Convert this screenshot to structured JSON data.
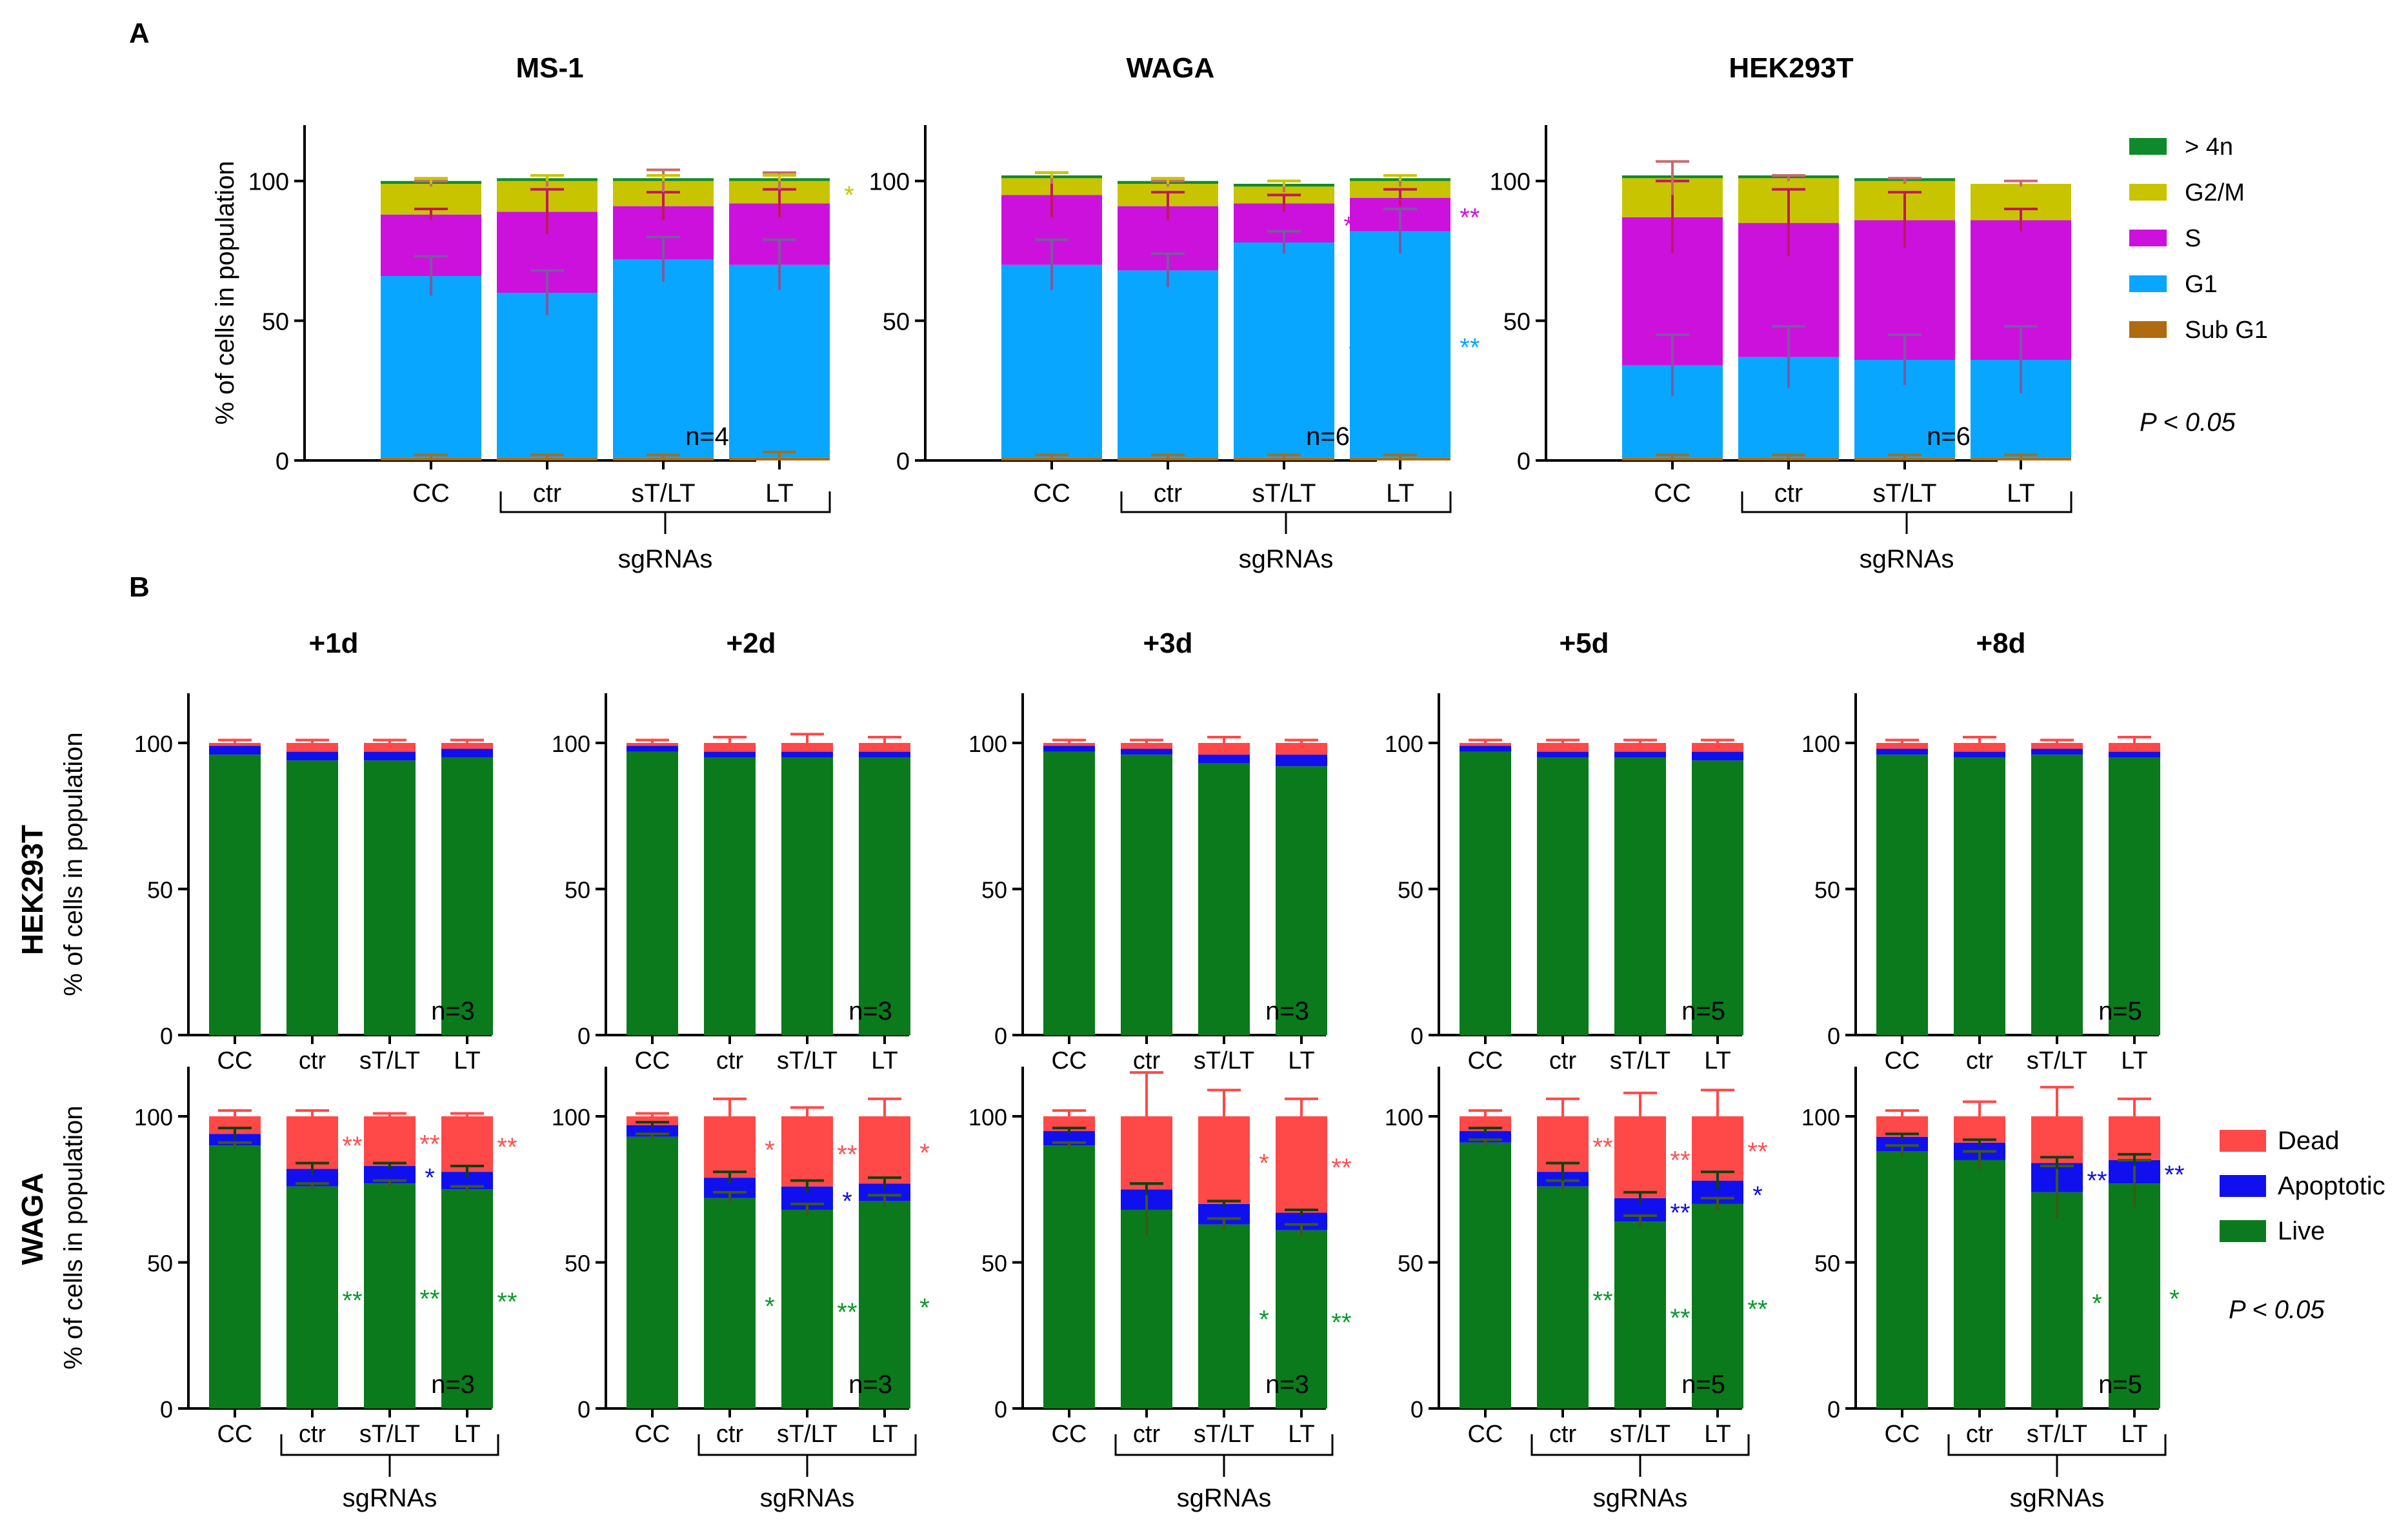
{
  "figure": {
    "panel_a_label": "A",
    "panel_b_label": "B",
    "row_b_labels": [
      "HEK293T",
      "WAGA"
    ],
    "x_categories": [
      "CC",
      "ctr",
      "sT/LT",
      "LT"
    ],
    "group_label": "sgRNAs",
    "y_label": "% of cells in population",
    "y_ticks": [
      "0",
      "50",
      "100"
    ],
    "significance_note": "P < 0.05"
  },
  "legend_a": [
    {
      "label": "> 4n",
      "color": "#0f8a2a"
    },
    {
      "label": "G2/M",
      "color": "#c8c400"
    },
    {
      "label": "S",
      "color": "#cc11dd"
    },
    {
      "label": "G1",
      "color": "#08a6ff"
    },
    {
      "label": "Sub G1",
      "color": "#b06a10"
    }
  ],
  "legend_b": [
    {
      "label": "Dead",
      "color": "#ff4848"
    },
    {
      "label": "Apoptotic",
      "color": "#1010ee"
    },
    {
      "label": "Live",
      "color": "#0a7a1c"
    }
  ],
  "chart_data": [
    {
      "type": "bar",
      "stacked": true,
      "panel": "A",
      "title": "MS-1",
      "categories": [
        "CC",
        "ctr",
        "sT/LT",
        "LT"
      ],
      "ylim": [
        0,
        120
      ],
      "ylabel": "% of cells in population",
      "n_label": "n=4",
      "series": [
        {
          "name": "Sub G1",
          "values": [
            1,
            1,
            1,
            1
          ]
        },
        {
          "name": "G1",
          "values": [
            65,
            59,
            71,
            69
          ]
        },
        {
          "name": "S",
          "values": [
            22,
            29,
            19,
            22
          ]
        },
        {
          "name": "G2/M",
          "values": [
            11,
            11,
            9,
            8
          ]
        },
        {
          "name": "> 4n",
          "values": [
            1,
            1,
            1,
            1
          ]
        }
      ],
      "error_tops": [
        [
          1,
          7,
          2,
          1,
          1
        ],
        [
          1,
          8,
          8,
          2,
          1
        ],
        [
          1,
          8,
          5,
          4,
          1
        ],
        [
          2,
          9,
          5,
          3,
          1
        ]
      ],
      "annotations": [
        {
          "category": "LT",
          "text": "*",
          "series": "G2/M"
        }
      ]
    },
    {
      "type": "bar",
      "stacked": true,
      "panel": "A",
      "title": "WAGA",
      "categories": [
        "CC",
        "ctr",
        "sT/LT",
        "LT"
      ],
      "ylim": [
        0,
        120
      ],
      "ylabel": "",
      "n_label": "n=6",
      "series": [
        {
          "name": "Sub G1",
          "values": [
            1,
            1,
            1,
            1
          ]
        },
        {
          "name": "G1",
          "values": [
            69,
            67,
            77,
            81
          ]
        },
        {
          "name": "S",
          "values": [
            25,
            23,
            14,
            12
          ]
        },
        {
          "name": "G2/M",
          "values": [
            6,
            8,
            6,
            6
          ]
        },
        {
          "name": "> 4n",
          "values": [
            1,
            1,
            1,
            1
          ]
        }
      ],
      "error_tops": [
        [
          1,
          9,
          8,
          2,
          1
        ],
        [
          1,
          6,
          5,
          1,
          1
        ],
        [
          1,
          4,
          3,
          2,
          1
        ],
        [
          1,
          8,
          3,
          2,
          1
        ]
      ],
      "annotations": [
        {
          "category": "sT/LT",
          "text": "**",
          "series": "S"
        },
        {
          "category": "sT/LT",
          "text": "*",
          "series": "G1"
        },
        {
          "category": "LT",
          "text": "**",
          "series": "S"
        },
        {
          "category": "LT",
          "text": "**",
          "series": "G1"
        }
      ]
    },
    {
      "type": "bar",
      "stacked": true,
      "panel": "A",
      "title": "HEK293T",
      "categories": [
        "CC",
        "ctr",
        "sT/LT",
        "LT"
      ],
      "ylim": [
        0,
        120
      ],
      "ylabel": "",
      "n_label": "n=6",
      "series": [
        {
          "name": "Sub G1",
          "values": [
            1,
            1,
            1,
            1
          ]
        },
        {
          "name": "G1",
          "values": [
            33,
            36,
            35,
            35
          ]
        },
        {
          "name": "S",
          "values": [
            53,
            48,
            50,
            50
          ]
        },
        {
          "name": "G2/M",
          "values": [
            14,
            16,
            14,
            13
          ]
        },
        {
          "name": "> 4n",
          "values": [
            1,
            1,
            1,
            0
          ]
        }
      ],
      "error_tops": [
        [
          1,
          11,
          13,
          6,
          0
        ],
        [
          1,
          11,
          12,
          1,
          0
        ],
        [
          1,
          9,
          10,
          1,
          0
        ],
        [
          1,
          12,
          4,
          1,
          0
        ]
      ],
      "annotations": []
    },
    {
      "type": "bar",
      "stacked": true,
      "panel": "B",
      "title": "+1d",
      "row": "HEK293T",
      "categories": [
        "CC",
        "ctr",
        "sT/LT",
        "LT"
      ],
      "ylim": [
        0,
        117
      ],
      "ylabel": "% of cells in population",
      "n_label": "n=3",
      "series": [
        {
          "name": "Live",
          "values": [
            96,
            94,
            94,
            95
          ]
        },
        {
          "name": "Apoptotic",
          "values": [
            3,
            3,
            3,
            3
          ]
        },
        {
          "name": "Dead",
          "values": [
            1,
            3,
            3,
            2
          ]
        }
      ],
      "error_tops": [
        [
          0,
          0,
          1
        ],
        [
          0,
          0,
          1
        ],
        [
          0,
          0,
          1
        ],
        [
          0,
          0,
          1
        ]
      ],
      "annotations": []
    },
    {
      "type": "bar",
      "stacked": true,
      "panel": "B",
      "title": "+2d",
      "row": "HEK293T",
      "categories": [
        "CC",
        "ctr",
        "sT/LT",
        "LT"
      ],
      "ylim": [
        0,
        117
      ],
      "ylabel": "",
      "n_label": "n=3",
      "series": [
        {
          "name": "Live",
          "values": [
            97,
            95,
            95,
            95
          ]
        },
        {
          "name": "Apoptotic",
          "values": [
            2,
            2,
            2,
            2
          ]
        },
        {
          "name": "Dead",
          "values": [
            1,
            3,
            3,
            3
          ]
        }
      ],
      "error_tops": [
        [
          0,
          0,
          1
        ],
        [
          0,
          0,
          2
        ],
        [
          0,
          0,
          3
        ],
        [
          0,
          0,
          2
        ]
      ],
      "annotations": []
    },
    {
      "type": "bar",
      "stacked": true,
      "panel": "B",
      "title": "+3d",
      "row": "HEK293T",
      "categories": [
        "CC",
        "ctr",
        "sT/LT",
        "LT"
      ],
      "ylim": [
        0,
        117
      ],
      "ylabel": "",
      "n_label": "n=3",
      "series": [
        {
          "name": "Live",
          "values": [
            97,
            96,
            93,
            92
          ]
        },
        {
          "name": "Apoptotic",
          "values": [
            2,
            2,
            3,
            4
          ]
        },
        {
          "name": "Dead",
          "values": [
            1,
            2,
            4,
            4
          ]
        }
      ],
      "error_tops": [
        [
          0,
          0,
          1
        ],
        [
          0,
          0,
          1
        ],
        [
          0,
          0,
          2
        ],
        [
          0,
          0,
          1
        ]
      ],
      "annotations": []
    },
    {
      "type": "bar",
      "stacked": true,
      "panel": "B",
      "title": "+5d",
      "row": "HEK293T",
      "categories": [
        "CC",
        "ctr",
        "sT/LT",
        "LT"
      ],
      "ylim": [
        0,
        117
      ],
      "ylabel": "",
      "n_label": "n=5",
      "series": [
        {
          "name": "Live",
          "values": [
            97,
            95,
            95,
            94
          ]
        },
        {
          "name": "Apoptotic",
          "values": [
            2,
            2,
            2,
            3
          ]
        },
        {
          "name": "Dead",
          "values": [
            1,
            3,
            3,
            3
          ]
        }
      ],
      "error_tops": [
        [
          0,
          0,
          1
        ],
        [
          0,
          0,
          1
        ],
        [
          0,
          0,
          1
        ],
        [
          0,
          0,
          1
        ]
      ],
      "annotations": []
    },
    {
      "type": "bar",
      "stacked": true,
      "panel": "B",
      "title": "+8d",
      "row": "HEK293T",
      "categories": [
        "CC",
        "ctr",
        "sT/LT",
        "LT"
      ],
      "ylim": [
        0,
        117
      ],
      "ylabel": "",
      "n_label": "n=5",
      "series": [
        {
          "name": "Live",
          "values": [
            96,
            95,
            96,
            95
          ]
        },
        {
          "name": "Apoptotic",
          "values": [
            2,
            2,
            2,
            2
          ]
        },
        {
          "name": "Dead",
          "values": [
            2,
            3,
            2,
            3
          ]
        }
      ],
      "error_tops": [
        [
          0,
          0,
          1
        ],
        [
          0,
          0,
          2
        ],
        [
          0,
          0,
          1
        ],
        [
          0,
          0,
          2
        ]
      ],
      "annotations": []
    },
    {
      "type": "bar",
      "stacked": true,
      "panel": "B",
      "title": "",
      "row": "WAGA",
      "categories": [
        "CC",
        "ctr",
        "sT/LT",
        "LT"
      ],
      "ylim": [
        0,
        117
      ],
      "ylabel": "% of cells in population",
      "n_label": "n=3",
      "series": [
        {
          "name": "Live",
          "values": [
            90,
            76,
            77,
            75
          ]
        },
        {
          "name": "Apoptotic",
          "values": [
            4,
            6,
            6,
            6
          ]
        },
        {
          "name": "Dead",
          "values": [
            6,
            18,
            17,
            19
          ]
        }
      ],
      "error_tops": [
        [
          1,
          2,
          2
        ],
        [
          1,
          2,
          2
        ],
        [
          1,
          1,
          1
        ],
        [
          1,
          2,
          1
        ]
      ],
      "annotations": [
        {
          "category": "ctr",
          "text": "**",
          "series": "Dead"
        },
        {
          "category": "ctr",
          "text": "**",
          "series": "Live"
        },
        {
          "category": "sT/LT",
          "text": "**",
          "series": "Dead"
        },
        {
          "category": "sT/LT",
          "text": "*",
          "series": "Apoptotic"
        },
        {
          "category": "sT/LT",
          "text": "**",
          "series": "Live"
        },
        {
          "category": "LT",
          "text": "**",
          "series": "Dead"
        },
        {
          "category": "LT",
          "text": "**",
          "series": "Live"
        }
      ]
    },
    {
      "type": "bar",
      "stacked": true,
      "panel": "B",
      "title": "",
      "row": "WAGA",
      "categories": [
        "CC",
        "ctr",
        "sT/LT",
        "LT"
      ],
      "ylim": [
        0,
        117
      ],
      "ylabel": "",
      "n_label": "n=3",
      "series": [
        {
          "name": "Live",
          "values": [
            93,
            72,
            68,
            71
          ]
        },
        {
          "name": "Apoptotic",
          "values": [
            4,
            7,
            8,
            6
          ]
        },
        {
          "name": "Dead",
          "values": [
            3,
            21,
            24,
            23
          ]
        }
      ],
      "error_tops": [
        [
          1,
          1,
          1
        ],
        [
          2,
          2,
          6
        ],
        [
          2,
          2,
          3
        ],
        [
          2,
          2,
          6
        ]
      ],
      "annotations": [
        {
          "category": "ctr",
          "text": "*",
          "series": "Dead"
        },
        {
          "category": "ctr",
          "text": "*",
          "series": "Live"
        },
        {
          "category": "sT/LT",
          "text": "**",
          "series": "Dead"
        },
        {
          "category": "sT/LT",
          "text": "*",
          "series": "Apoptotic"
        },
        {
          "category": "sT/LT",
          "text": "**",
          "series": "Live"
        },
        {
          "category": "LT",
          "text": "*",
          "series": "Dead"
        },
        {
          "category": "LT",
          "text": "*",
          "series": "Live"
        }
      ]
    },
    {
      "type": "bar",
      "stacked": true,
      "panel": "B",
      "title": "",
      "row": "WAGA",
      "categories": [
        "CC",
        "ctr",
        "sT/LT",
        "LT"
      ],
      "ylim": [
        0,
        117
      ],
      "ylabel": "",
      "n_label": "n=3",
      "series": [
        {
          "name": "Live",
          "values": [
            90,
            68,
            63,
            61
          ]
        },
        {
          "name": "Apoptotic",
          "values": [
            5,
            7,
            7,
            6
          ]
        },
        {
          "name": "Dead",
          "values": [
            5,
            25,
            30,
            33
          ]
        }
      ],
      "error_tops": [
        [
          1,
          1,
          2
        ],
        [
          9,
          2,
          15
        ],
        [
          2,
          1,
          9
        ],
        [
          2,
          1,
          6
        ]
      ],
      "annotations": [
        {
          "category": "sT/LT",
          "text": "*",
          "series": "Dead"
        },
        {
          "category": "sT/LT",
          "text": "*",
          "series": "Live"
        },
        {
          "category": "LT",
          "text": "**",
          "series": "Dead"
        },
        {
          "category": "LT",
          "text": "**",
          "series": "Live"
        }
      ]
    },
    {
      "type": "bar",
      "stacked": true,
      "panel": "B",
      "title": "",
      "row": "WAGA",
      "categories": [
        "CC",
        "ctr",
        "sT/LT",
        "LT"
      ],
      "ylim": [
        0,
        117
      ],
      "ylabel": "",
      "n_label": "n=5",
      "series": [
        {
          "name": "Live",
          "values": [
            91,
            76,
            64,
            70
          ]
        },
        {
          "name": "Apoptotic",
          "values": [
            4,
            5,
            8,
            8
          ]
        },
        {
          "name": "Dead",
          "values": [
            5,
            19,
            28,
            22
          ]
        }
      ],
      "error_tops": [
        [
          1,
          1,
          2
        ],
        [
          2,
          3,
          6
        ],
        [
          2,
          2,
          8
        ],
        [
          2,
          3,
          9
        ]
      ],
      "annotations": [
        {
          "category": "ctr",
          "text": "**",
          "series": "Dead"
        },
        {
          "category": "ctr",
          "text": "**",
          "series": "Live"
        },
        {
          "category": "sT/LT",
          "text": "**",
          "series": "Dead"
        },
        {
          "category": "sT/LT",
          "text": "**",
          "series": "Apoptotic"
        },
        {
          "category": "sT/LT",
          "text": "**",
          "series": "Live"
        },
        {
          "category": "LT",
          "text": "**",
          "series": "Dead"
        },
        {
          "category": "LT",
          "text": "*",
          "series": "Apoptotic"
        },
        {
          "category": "LT",
          "text": "**",
          "series": "Live"
        }
      ]
    },
    {
      "type": "bar",
      "stacked": true,
      "panel": "B",
      "title": "",
      "row": "WAGA",
      "categories": [
        "CC",
        "ctr",
        "sT/LT",
        "LT"
      ],
      "ylim": [
        0,
        117
      ],
      "ylabel": "",
      "n_label": "n=5",
      "series": [
        {
          "name": "Live",
          "values": [
            88,
            85,
            74,
            77
          ]
        },
        {
          "name": "Apoptotic",
          "values": [
            5,
            6,
            10,
            8
          ]
        },
        {
          "name": "Dead",
          "values": [
            7,
            9,
            16,
            15
          ]
        }
      ],
      "error_tops": [
        [
          2,
          1,
          2
        ],
        [
          3,
          1,
          5
        ],
        [
          9,
          2,
          10
        ],
        [
          8,
          2,
          6
        ]
      ],
      "annotations": [
        {
          "category": "sT/LT",
          "text": "**",
          "series": "Apoptotic"
        },
        {
          "category": "sT/LT",
          "text": "*",
          "series": "Live"
        },
        {
          "category": "LT",
          "text": "**",
          "series": "Apoptotic"
        },
        {
          "category": "LT",
          "text": "*",
          "series": "Live"
        }
      ]
    }
  ]
}
